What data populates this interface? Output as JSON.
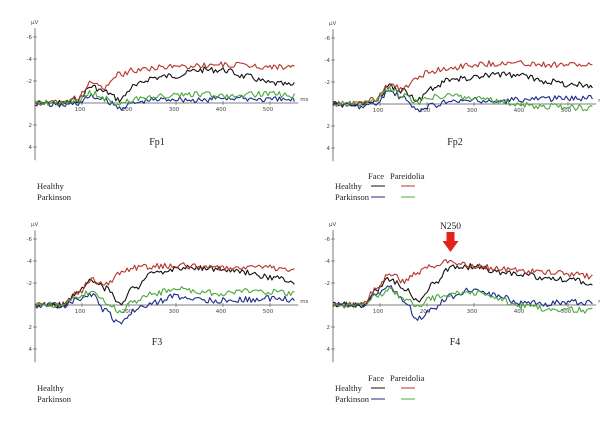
{
  "figure": {
    "legend_header_face": "Face",
    "legend_header_pareidolia": "Pareidolia",
    "legend_row_healthy": "Healthy",
    "legend_row_parkinson": "Parkinson",
    "y_unit": "µV",
    "x_unit": "ms"
  },
  "colors": {
    "healthy_face": "#111111",
    "healthy_pareidolia": "#b3352a",
    "parkinson_face": "#1d2a8a",
    "parkinson_pareidolia": "#4aa838",
    "arrow": "#e02518"
  },
  "chart_data": [
    {
      "type": "line",
      "title": "Fp1",
      "xlabel": "ms",
      "ylabel": "µV",
      "xlim": [
        0,
        560
      ],
      "ylim": [
        6,
        -6
      ],
      "y_ticks": [
        -6,
        -4,
        -2,
        2,
        4
      ],
      "x_ticks": [
        100,
        200,
        300,
        400,
        500
      ],
      "series": [
        {
          "name": "Healthy Face",
          "x": [
            0,
            60,
            90,
            120,
            150,
            180,
            210,
            250,
            300,
            350,
            400,
            450,
            500,
            550
          ],
          "y": [
            0,
            0,
            -0.3,
            -1.5,
            -1.0,
            -0.3,
            -1.5,
            -2.3,
            -2.5,
            -3.0,
            -3.0,
            -2.4,
            -1.8,
            -1.6
          ]
        },
        {
          "name": "Healthy Pareidolia",
          "x": [
            0,
            60,
            90,
            120,
            150,
            180,
            210,
            250,
            300,
            350,
            400,
            450,
            500,
            550
          ],
          "y": [
            0,
            0,
            -0.5,
            -1.8,
            -1.4,
            -2.6,
            -3.0,
            -3.2,
            -3.3,
            -3.4,
            -3.5,
            -3.4,
            -3.3,
            -3.3
          ]
        },
        {
          "name": "Parkinson Face",
          "x": [
            0,
            60,
            90,
            120,
            150,
            180,
            210,
            250,
            300,
            350,
            400,
            450,
            500,
            550
          ],
          "y": [
            0,
            0.2,
            0,
            -0.6,
            -0.2,
            0.4,
            0,
            -0.3,
            -0.4,
            -0.2,
            -0.5,
            -0.4,
            -0.3,
            -0.3
          ]
        },
        {
          "name": "Parkinson Pareidolia",
          "x": [
            0,
            60,
            90,
            120,
            150,
            180,
            210,
            250,
            300,
            350,
            400,
            450,
            500,
            550
          ],
          "y": [
            0,
            0,
            -0.3,
            -0.9,
            -0.4,
            0.1,
            -0.3,
            -0.6,
            -0.7,
            -0.8,
            -0.7,
            -0.8,
            -0.8,
            -0.7
          ]
        }
      ]
    },
    {
      "type": "line",
      "title": "Fp2",
      "xlabel": "ms",
      "ylabel": "µV",
      "xlim": [
        0,
        560
      ],
      "ylim": [
        6,
        -6
      ],
      "y_ticks": [
        -6,
        -4,
        -2,
        2,
        4
      ],
      "x_ticks": [
        100,
        200,
        300,
        400,
        500
      ],
      "series": [
        {
          "name": "Healthy Face",
          "x": [
            0,
            60,
            90,
            120,
            150,
            180,
            210,
            250,
            300,
            350,
            400,
            450,
            500,
            550
          ],
          "y": [
            0,
            0,
            -0.4,
            -1.6,
            -1.2,
            -0.4,
            -1.4,
            -2.2,
            -2.4,
            -2.7,
            -2.6,
            -2.1,
            -1.8,
            -1.7
          ]
        },
        {
          "name": "Healthy Pareidolia",
          "x": [
            0,
            60,
            90,
            120,
            150,
            180,
            210,
            250,
            300,
            350,
            400,
            450,
            500,
            550
          ],
          "y": [
            0,
            0,
            -0.4,
            -1.7,
            -1.3,
            -2.5,
            -3.0,
            -3.3,
            -3.6,
            -3.7,
            -3.7,
            -3.6,
            -3.6,
            -3.5
          ]
        },
        {
          "name": "Parkinson Face",
          "x": [
            0,
            60,
            90,
            120,
            150,
            180,
            210,
            250,
            300,
            350,
            400,
            450,
            500,
            550
          ],
          "y": [
            0,
            0.2,
            0,
            -1.2,
            -0.5,
            0.6,
            0.1,
            -0.2,
            -0.3,
            -0.2,
            -0.4,
            -0.5,
            -0.5,
            -0.6
          ]
        },
        {
          "name": "Parkinson Pareidolia",
          "x": [
            0,
            60,
            90,
            120,
            150,
            180,
            210,
            250,
            300,
            350,
            400,
            450,
            500,
            550
          ],
          "y": [
            0,
            0,
            -0.3,
            -1.4,
            -0.7,
            -0.2,
            -0.6,
            -0.8,
            -0.5,
            -0.3,
            0.1,
            0.2,
            0.3,
            0.4
          ]
        }
      ]
    },
    {
      "type": "line",
      "title": "F3",
      "xlabel": "ms",
      "ylabel": "µV",
      "xlim": [
        0,
        560
      ],
      "ylim": [
        6,
        -6
      ],
      "y_ticks": [
        -6,
        -4,
        -2,
        2,
        4
      ],
      "x_ticks": [
        100,
        200,
        300,
        400,
        500
      ],
      "series": [
        {
          "name": "Healthy Face",
          "x": [
            0,
            60,
            90,
            120,
            150,
            180,
            210,
            250,
            300,
            350,
            400,
            450,
            500,
            550
          ],
          "y": [
            0,
            0,
            -1.2,
            -2.3,
            -1.5,
            -0.2,
            -1.5,
            -2.8,
            -3.3,
            -3.4,
            -3.2,
            -2.9,
            -2.5,
            -2.1
          ]
        },
        {
          "name": "Healthy Pareidolia",
          "x": [
            0,
            60,
            90,
            120,
            150,
            180,
            210,
            250,
            300,
            350,
            400,
            450,
            500,
            550
          ],
          "y": [
            0,
            0,
            -1.0,
            -2.3,
            -1.8,
            -2.9,
            -3.4,
            -3.5,
            -3.6,
            -3.5,
            -3.4,
            -3.5,
            -3.4,
            -3.2
          ]
        },
        {
          "name": "Parkinson Face",
          "x": [
            0,
            60,
            90,
            120,
            150,
            180,
            210,
            250,
            300,
            350,
            400,
            450,
            500,
            550
          ],
          "y": [
            0,
            0.1,
            -0.5,
            -1.0,
            0.6,
            1.8,
            0.5,
            -0.2,
            -0.8,
            -0.5,
            -0.4,
            -0.5,
            -0.6,
            -0.5
          ]
        },
        {
          "name": "Parkinson Pareidolia",
          "x": [
            0,
            60,
            90,
            120,
            150,
            180,
            210,
            250,
            300,
            350,
            400,
            450,
            500,
            550
          ],
          "y": [
            0,
            0,
            -0.6,
            -1.3,
            -0.3,
            0.6,
            -0.4,
            -1.0,
            -1.5,
            -1.2,
            -1.0,
            -1.3,
            -1.2,
            -1.0
          ]
        }
      ]
    },
    {
      "type": "line",
      "title": "F4",
      "xlabel": "ms",
      "ylabel": "µV",
      "xlim": [
        0,
        560
      ],
      "ylim": [
        6,
        -6
      ],
      "y_ticks": [
        -6,
        -4,
        -2,
        2,
        4
      ],
      "x_ticks": [
        100,
        200,
        300,
        400,
        500
      ],
      "annotations": [
        {
          "text": "N250",
          "x": 250
        }
      ],
      "series": [
        {
          "name": "Healthy Face",
          "x": [
            0,
            60,
            90,
            120,
            150,
            180,
            210,
            250,
            300,
            350,
            400,
            450,
            500,
            550
          ],
          "y": [
            0,
            0,
            -1.3,
            -2.4,
            -1.6,
            -0.3,
            -1.8,
            -3.4,
            -3.5,
            -3.0,
            -2.8,
            -2.5,
            -2.3,
            -2.0
          ]
        },
        {
          "name": "Healthy Pareidolia",
          "x": [
            0,
            60,
            90,
            120,
            150,
            180,
            210,
            250,
            300,
            350,
            400,
            450,
            500,
            550
          ],
          "y": [
            0,
            0,
            -1.4,
            -2.9,
            -2.2,
            -3.0,
            -3.6,
            -3.9,
            -3.6,
            -3.3,
            -3.1,
            -3.0,
            -2.8,
            -2.6
          ]
        },
        {
          "name": "Parkinson Face",
          "x": [
            0,
            60,
            90,
            120,
            150,
            180,
            210,
            250,
            300,
            350,
            400,
            450,
            500,
            550
          ],
          "y": [
            0,
            0,
            -0.8,
            -1.6,
            -0.5,
            1.2,
            0.4,
            -0.8,
            -1.4,
            -0.8,
            -0.2,
            -0.1,
            -0.3,
            -0.2
          ]
        },
        {
          "name": "Parkinson Pareidolia",
          "x": [
            0,
            60,
            90,
            120,
            150,
            180,
            210,
            250,
            300,
            350,
            400,
            450,
            500,
            550
          ],
          "y": [
            0,
            0,
            -0.7,
            -1.4,
            -0.6,
            0.2,
            -0.6,
            -1.0,
            -1.1,
            -0.6,
            0.1,
            0.3,
            0.4,
            0.5
          ]
        }
      ]
    }
  ]
}
